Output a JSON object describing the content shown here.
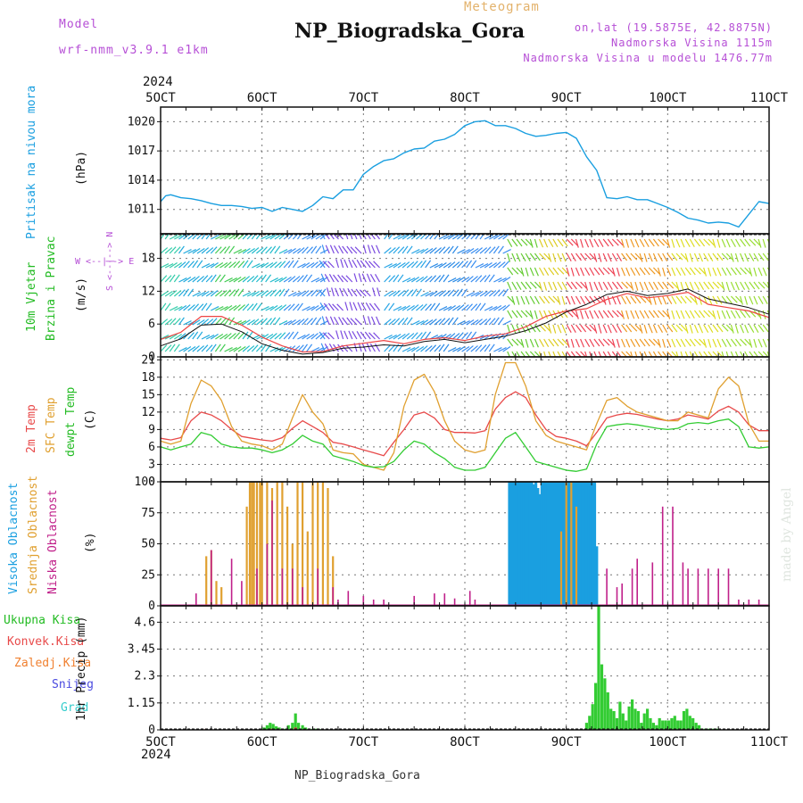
{
  "header": {
    "model_label": "Model",
    "model_name": "wrf-nmm_v3.9.1 e1km",
    "title": "NP_Biogradska_Gora",
    "meteogram": "Meteogram",
    "lonlat": "on,lat (19.5875E, 42.8875N)",
    "elevation": "Nadmorska Visina 1115m",
    "model_elevation": "Nadmorska Visina u modelu 1476.77m",
    "year_top": "2024",
    "year_bottom": "2024",
    "footer": "NP_Biogradska_Gora",
    "watermark": "made by Angel"
  },
  "dates": [
    "5OCT",
    "6OCT",
    "7OCT",
    "8OCT",
    "9OCT",
    "10OCT",
    "11OCT"
  ],
  "colors": {
    "pressure": "#1a9fe0",
    "wind": "#33cc33",
    "temp2m": "#e84a4a",
    "sfc": "#e0a030",
    "dewpt": "#33cc33",
    "high_cloud": "#1a9fe0",
    "mid_cloud": "#e0a030",
    "low_cloud": "#c0208a",
    "precip_total": "#33cc33",
    "precip_conv": "#e84a4a",
    "precip_frz": "#f08030",
    "snow": "#4a4ae0",
    "hail": "#33cccc",
    "legend_violet": "#b64fd6"
  },
  "panels": {
    "pressure": {
      "label": "Pritisak na nivou mora",
      "unit": "(hPa)"
    },
    "wind": {
      "label1": "10m Vjetar",
      "label2": "Brzina i Pravac",
      "unit": "(m/s)",
      "compass": "W <--|--> E",
      "compass_vert": "S <--|--> N"
    },
    "temp": {
      "label1": "2m Temp",
      "label2": "SFC Temp",
      "label3": "dewpt Temp",
      "unit": "(C)"
    },
    "cloud": {
      "label1": "Visoka Oblacnost",
      "label2": "Srednja Oblacnost",
      "label3": "Niska Oblacnost",
      "unit": "(%)"
    },
    "precip": {
      "items": [
        "Ukupna Kisa",
        "Konvek.Kisa",
        "Zaledj.Kisa",
        "Snijeg",
        "Grad"
      ],
      "unit": "1hr Precip (mm)"
    }
  },
  "chart_data": [
    {
      "type": "line",
      "name": "pressure",
      "yticks": [
        1011,
        1014,
        1017,
        1020
      ],
      "ylim": [
        1008.5,
        1021.5
      ],
      "x": [
        0,
        0.05,
        0.1,
        0.2,
        0.3,
        0.4,
        0.5,
        0.6,
        0.7,
        0.8,
        0.9,
        1.0,
        1.1,
        1.2,
        1.3,
        1.4,
        1.5,
        1.6,
        1.7,
        1.8,
        1.9,
        2.0,
        2.1,
        2.2,
        2.3,
        2.4,
        2.5,
        2.6,
        2.7,
        2.8,
        2.9,
        3.0,
        3.1,
        3.2,
        3.3,
        3.4,
        3.5,
        3.6,
        3.7,
        3.8,
        3.9,
        4.0,
        4.1,
        4.2,
        4.3,
        4.4,
        4.5,
        4.6,
        4.7,
        4.8,
        4.9,
        5.0,
        5.1,
        5.2,
        5.3,
        5.4,
        5.5,
        5.6,
        5.7,
        5.8,
        5.9,
        6.0
      ],
      "y": [
        1011.8,
        1012.4,
        1012.5,
        1012.2,
        1012.1,
        1011.9,
        1011.6,
        1011.4,
        1011.4,
        1011.3,
        1011.1,
        1011.2,
        1010.8,
        1011.2,
        1011.0,
        1010.8,
        1011.4,
        1012.3,
        1012.1,
        1013.0,
        1013.0,
        1014.6,
        1015.4,
        1016.0,
        1016.2,
        1016.8,
        1017.2,
        1017.3,
        1018.0,
        1018.2,
        1018.7,
        1019.6,
        1020.0,
        1020.1,
        1019.6,
        1019.6,
        1019.3,
        1018.8,
        1018.5,
        1018.6,
        1018.8,
        1018.9,
        1018.3,
        1016.4,
        1015.0,
        1012.2,
        1012.1,
        1012.3,
        1012.0,
        1012.0,
        1011.6,
        1011.2,
        1010.7,
        1010.1,
        1009.9,
        1009.6,
        1009.7,
        1009.6,
        1009.2,
        1010.5,
        1011.8,
        1011.6
      ],
      "color": "#1a9fe0"
    },
    {
      "type": "line",
      "name": "wind",
      "yticks": [
        0,
        6,
        12,
        18
      ],
      "ylim": [
        0,
        22.5
      ],
      "x": [
        0,
        0.2,
        0.4,
        0.6,
        0.8,
        1.0,
        1.2,
        1.4,
        1.6,
        1.8,
        2.0,
        2.2,
        2.4,
        2.6,
        2.8,
        3.0,
        3.2,
        3.4,
        3.6,
        3.8,
        4.0,
        4.2,
        4.4,
        4.6,
        4.8,
        5.0,
        5.2,
        5.4,
        5.6,
        5.8,
        6.0
      ],
      "series": [
        {
          "values": [
            3.2,
            4.5,
            7.4,
            7.4,
            5.8,
            3.6,
            2.0,
            0.9,
            1.0,
            2.0,
            2.5,
            3.0,
            2.4,
            3.2,
            3.5,
            3.0,
            3.8,
            4.2,
            5.5,
            7.4,
            8.4,
            8.8,
            10.5,
            11.6,
            10.8,
            11.2,
            11.8,
            9.6,
            9.0,
            8.4,
            7.2
          ]
        },
        {
          "values": [
            2.0,
            3.3,
            5.8,
            6.0,
            4.6,
            2.4,
            1.2,
            0.5,
            0.8,
            1.6,
            1.8,
            2.2,
            2.0,
            2.8,
            3.2,
            2.6,
            3.2,
            3.8,
            4.8,
            6.2,
            8.2,
            9.6,
            11.4,
            12.0,
            11.2,
            11.6,
            12.4,
            10.6,
            9.8,
            9.0,
            7.8
          ]
        }
      ]
    },
    {
      "type": "line",
      "name": "temperature",
      "yticks": [
        0,
        3,
        6,
        9,
        12,
        15,
        18,
        21
      ],
      "ylim": [
        0,
        21.5
      ],
      "x": [
        0,
        0.1,
        0.2,
        0.3,
        0.4,
        0.5,
        0.6,
        0.7,
        0.8,
        0.9,
        1.0,
        1.1,
        1.2,
        1.3,
        1.4,
        1.5,
        1.6,
        1.7,
        1.8,
        1.9,
        2.0,
        2.1,
        2.2,
        2.3,
        2.4,
        2.5,
        2.6,
        2.7,
        2.8,
        2.9,
        3.0,
        3.1,
        3.2,
        3.3,
        3.4,
        3.5,
        3.6,
        3.7,
        3.8,
        3.9,
        4.0,
        4.1,
        4.2,
        4.3,
        4.4,
        4.5,
        4.6,
        4.7,
        4.8,
        4.9,
        5.0,
        5.1,
        5.2,
        5.3,
        5.4,
        5.5,
        5.6,
        5.7,
        5.8,
        5.9,
        6.0
      ],
      "series": [
        {
          "name": "2m Temp",
          "values": [
            7.5,
            7.2,
            7.6,
            10.5,
            12.0,
            11.5,
            10.5,
            9.0,
            7.8,
            7.5,
            7.2,
            7.0,
            7.6,
            9.2,
            10.5,
            9.5,
            8.5,
            6.8,
            6.5,
            6.0,
            5.5,
            5.0,
            4.5,
            6.8,
            9.0,
            11.5,
            12.0,
            11.0,
            9.0,
            8.5,
            8.5,
            8.4,
            8.8,
            12.5,
            14.5,
            15.5,
            14.5,
            11.5,
            9.0,
            7.8,
            7.5,
            7.0,
            6.2,
            8.5,
            11.0,
            11.5,
            11.8,
            11.6,
            11.2,
            10.8,
            10.5,
            10.8,
            11.5,
            11.2,
            10.8,
            12.2,
            13.0,
            12.0,
            9.8,
            8.8,
            8.8
          ]
        },
        {
          "name": "SFC Temp",
          "values": [
            7.0,
            6.5,
            7.0,
            13.5,
            17.5,
            16.5,
            14.0,
            9.5,
            7.0,
            6.5,
            6.2,
            5.5,
            6.5,
            11.0,
            15.0,
            12.0,
            10.0,
            5.5,
            5.0,
            4.8,
            3.0,
            2.5,
            2.0,
            5.0,
            13.0,
            17.5,
            18.5,
            15.5,
            10.5,
            7.0,
            5.5,
            5.0,
            5.5,
            15.0,
            20.5,
            20.5,
            16.5,
            10.5,
            8.0,
            7.0,
            6.5,
            6.0,
            5.5,
            10.0,
            14.0,
            14.5,
            13.0,
            12.0,
            11.5,
            11.0,
            10.5,
            10.5,
            12.0,
            11.5,
            11.0,
            16.0,
            18.0,
            16.5,
            10.0,
            7.0,
            7.0
          ]
        },
        {
          "name": "dewpt Temp",
          "values": [
            6.0,
            5.5,
            6.0,
            6.5,
            8.5,
            8.0,
            6.5,
            6.0,
            5.8,
            5.8,
            5.5,
            5.0,
            5.5,
            6.5,
            8.0,
            7.0,
            6.5,
            4.5,
            4.0,
            3.5,
            2.8,
            2.5,
            2.6,
            3.5,
            5.5,
            7.0,
            6.5,
            5.0,
            4.0,
            2.5,
            2.0,
            2.0,
            2.5,
            5.0,
            7.5,
            8.5,
            6.0,
            3.5,
            3.0,
            2.5,
            2.0,
            1.8,
            2.2,
            6.5,
            9.5,
            9.8,
            10.0,
            9.8,
            9.5,
            9.2,
            9.0,
            9.2,
            10.0,
            10.2,
            10.0,
            10.5,
            10.8,
            9.5,
            6.0,
            5.8,
            6.0
          ]
        }
      ]
    },
    {
      "type": "bar",
      "name": "cloud",
      "yticks": [
        0,
        25,
        50,
        75,
        100
      ],
      "ylim": [
        0,
        100
      ],
      "series": [
        {
          "name": "Visoka Oblacnost",
          "x": [
            3.44,
            3.46,
            3.48,
            3.5,
            3.52,
            3.54,
            3.56,
            3.58,
            3.6,
            3.62,
            3.64,
            3.66,
            3.68,
            3.7,
            3.72,
            3.74,
            3.76,
            3.78,
            3.8,
            3.82,
            3.84,
            3.86,
            3.88,
            3.9,
            3.92,
            3.94,
            3.96,
            3.98,
            4.0,
            4.02,
            4.04,
            4.06,
            4.08,
            4.1,
            4.12,
            4.14,
            4.16,
            4.18,
            4.2,
            4.22,
            4.24,
            4.26,
            4.28,
            4.3
          ],
          "values": [
            100,
            100,
            100,
            100,
            100,
            100,
            100,
            100,
            100,
            100,
            100,
            100,
            98,
            100,
            95,
            90,
            100,
            100,
            100,
            100,
            100,
            100,
            100,
            100,
            100,
            100,
            100,
            100,
            100,
            100,
            100,
            100,
            100,
            100,
            100,
            100,
            100,
            100,
            100,
            100,
            100,
            100,
            100,
            48
          ]
        },
        {
          "name": "Srednja Oblacnost",
          "x": [
            0.45,
            0.5,
            0.55,
            0.6,
            0.85,
            0.88,
            0.9,
            0.92,
            0.95,
            0.98,
            1.0,
            1.05,
            1.1,
            1.15,
            1.2,
            1.25,
            1.3,
            1.35,
            1.4,
            1.45,
            1.5,
            1.55,
            1.6,
            1.65,
            1.7,
            3.95,
            4.0,
            4.05,
            4.1
          ],
          "values": [
            40,
            45,
            20,
            15,
            80,
            100,
            100,
            100,
            100,
            100,
            100,
            100,
            95,
            100,
            100,
            80,
            50,
            100,
            100,
            60,
            100,
            100,
            100,
            95,
            40,
            60,
            100,
            100,
            80
          ]
        },
        {
          "name": "Niska Oblacnost",
          "x": [
            0.35,
            0.5,
            0.7,
            0.8,
            0.95,
            1.05,
            1.1,
            1.2,
            1.3,
            1.4,
            1.55,
            1.7,
            1.75,
            1.85,
            2.0,
            2.1,
            2.2,
            2.5,
            2.7,
            2.8,
            2.9,
            3.05,
            3.1,
            4.4,
            4.5,
            4.55,
            4.65,
            4.7,
            4.85,
            4.95,
            5.05,
            5.15,
            5.2,
            5.3,
            5.4,
            5.5,
            5.6,
            5.7,
            5.8,
            5.9
          ],
          "values": [
            10,
            45,
            38,
            20,
            30,
            50,
            85,
            30,
            30,
            15,
            30,
            15,
            5,
            12,
            8,
            5,
            5,
            8,
            10,
            10,
            6,
            12,
            5,
            30,
            15,
            18,
            30,
            38,
            35,
            80,
            80,
            35,
            30,
            30,
            30,
            30,
            30,
            5,
            5,
            5
          ]
        }
      ]
    },
    {
      "type": "bar",
      "name": "precip",
      "yticks": [
        0,
        1.15,
        2.3,
        3.45,
        4.6
      ],
      "ylim": [
        0,
        5.3
      ],
      "series": [
        {
          "name": "Ukupna Kisa",
          "x": [
            0.99,
            1.02,
            1.05,
            1.08,
            1.11,
            1.14,
            1.17,
            1.2,
            1.23,
            1.26,
            1.3,
            1.33,
            1.36,
            1.4,
            1.43,
            1.46,
            1.5,
            1.53,
            1.56,
            4.2,
            4.23,
            4.26,
            4.29,
            4.32,
            4.35,
            4.38,
            4.41,
            4.44,
            4.47,
            4.5,
            4.53,
            4.56,
            4.59,
            4.62,
            4.65,
            4.68,
            4.71,
            4.74,
            4.77,
            4.8,
            4.83,
            4.86,
            4.89,
            4.92,
            4.95,
            4.98,
            5.01,
            5.04,
            5.07,
            5.1,
            5.13,
            5.16,
            5.19,
            5.22,
            5.25,
            5.28,
            5.31,
            5.34,
            5.37,
            5.4,
            5.43,
            5.46,
            5.49
          ],
          "values": [
            0.05,
            0.1,
            0.2,
            0.3,
            0.25,
            0.15,
            0.1,
            0.05,
            0.05,
            0.2,
            0.3,
            0.7,
            0.3,
            0.2,
            0.1,
            0.05,
            0.05,
            0.05,
            0.05,
            0.3,
            0.6,
            1.1,
            2.0,
            5.3,
            2.8,
            2.2,
            1.6,
            0.9,
            0.8,
            0.5,
            1.2,
            0.7,
            0.4,
            1.0,
            1.3,
            0.9,
            0.8,
            0.3,
            0.7,
            0.9,
            0.5,
            0.3,
            0.2,
            0.5,
            0.4,
            0.4,
            0.4,
            0.5,
            0.6,
            0.4,
            0.4,
            0.8,
            0.9,
            0.6,
            0.5,
            0.3,
            0.2,
            0.05,
            0.05,
            0.05,
            0.05,
            0.05,
            0.05
          ]
        },
        {
          "name": "Konvek.Kisa",
          "x": [
            0.45,
            1.1,
            1.33
          ],
          "values": [
            0.05,
            0.05,
            0.1
          ]
        }
      ]
    }
  ]
}
